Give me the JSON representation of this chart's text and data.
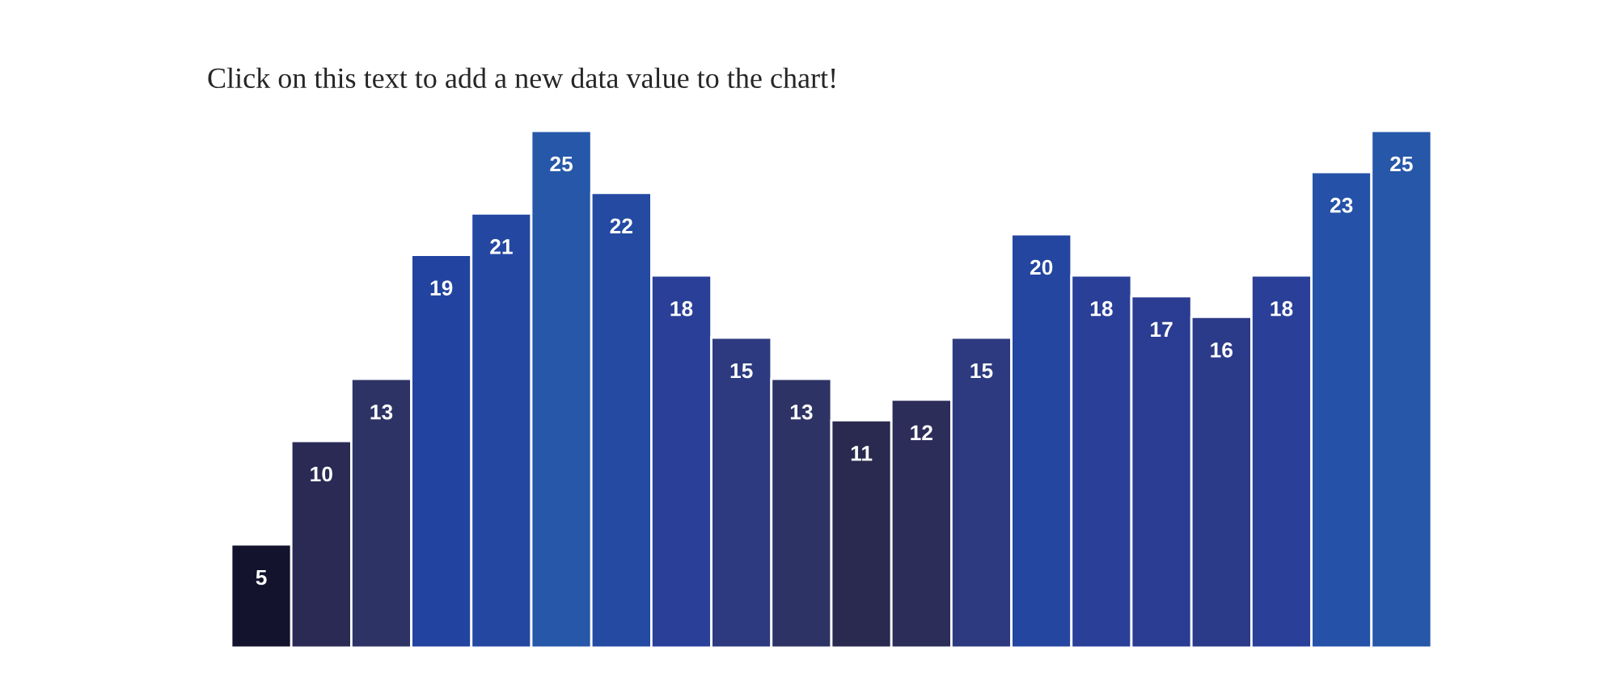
{
  "chart_data": {
    "type": "bar",
    "title": "Click on this text to add a new data value to the chart!",
    "categories": [
      null,
      null,
      null,
      null,
      null,
      null,
      null,
      null,
      null,
      null,
      null,
      null,
      null,
      null,
      null,
      null,
      null,
      null,
      null,
      null
    ],
    "values": [
      5,
      10,
      13,
      19,
      21,
      25,
      22,
      18,
      15,
      13,
      11,
      12,
      15,
      20,
      18,
      17,
      16,
      18,
      23,
      25
    ],
    "colors": [
      "#14132e",
      "#2a2a55",
      "#2e3366",
      "#2244a0",
      "#2448a2",
      "#2657a8",
      "#244aa2",
      "#2a3f98",
      "#2d3a80",
      "#2e3366",
      "#2a2a50",
      "#2d2d5a",
      "#2d3a80",
      "#2446a0",
      "#2a3f98",
      "#2b3d92",
      "#2c3a8a",
      "#2a3f98",
      "#2552a8",
      "#2657a8"
    ],
    "data_labels": true
  }
}
